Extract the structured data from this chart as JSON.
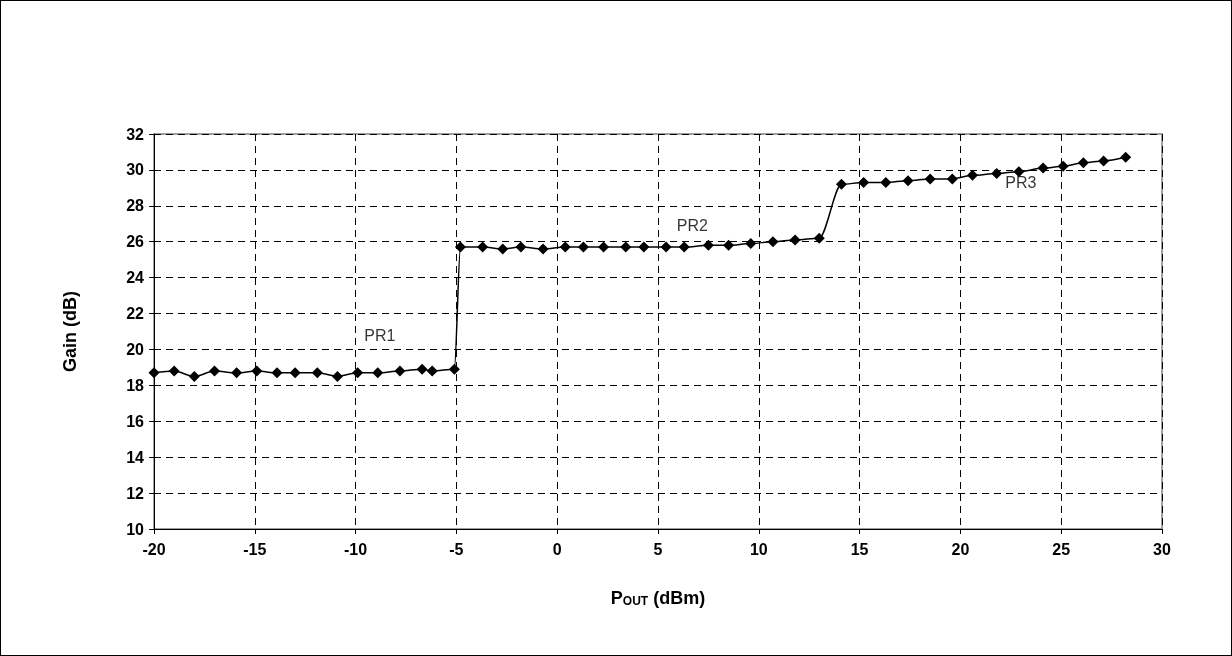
{
  "chart_data": {
    "type": "line",
    "xlabel": "P$_{OUT}$ (dBm)",
    "ylabel": "Gain (dB)",
    "x": [
      -20,
      -19,
      -18,
      -17,
      -15.9,
      -14.9,
      -13.9,
      -13,
      -11.9,
      -10.9,
      -9.9,
      -8.9,
      -7.8,
      -6.7,
      -6.2,
      -5.1,
      -4.8,
      -3.7,
      -2.7,
      -1.8,
      -0.7,
      0.4,
      1.3,
      2.3,
      3.4,
      4.3,
      5.4,
      6.3,
      7.5,
      8.5,
      9.6,
      10.7,
      11.8,
      13,
      14.1,
      15.2,
      16.3,
      17.4,
      18.5,
      19.6,
      20.6,
      21.8,
      22.9,
      24.1,
      25.1,
      26.1,
      27.1,
      28.2
    ],
    "series": [
      {
        "color": "#000000",
        "values": [
          18.7,
          18.8,
          18.5,
          18.8,
          18.7,
          18.8,
          18.7,
          18.7,
          18.7,
          18.5,
          18.7,
          18.7,
          18.8,
          18.9,
          18.8,
          18.9,
          25.7,
          25.7,
          25.6,
          25.7,
          25.6,
          25.7,
          25.7,
          25.7,
          25.7,
          25.7,
          25.7,
          25.7,
          25.8,
          25.8,
          25.9,
          26,
          26.1,
          26.2,
          29.2,
          29.3,
          29.3,
          29.4,
          29.5,
          29.5,
          29.7,
          29.8,
          29.9,
          30.1,
          30.2,
          30.4,
          30.5,
          30.7
        ]
      }
    ],
    "xlim": [
      -20,
      30
    ],
    "xticks": [
      -20,
      -15,
      -10,
      -5,
      0,
      5,
      10,
      15,
      20,
      25,
      30
    ],
    "ylim": [
      10,
      32
    ],
    "yticks": [
      10,
      12,
      14,
      16,
      18,
      20,
      22,
      24,
      26,
      28,
      30,
      32
    ],
    "grid": true,
    "marker": "diamond",
    "line_style": "solid",
    "annotations": [
      "PR1",
      "PR2",
      "PR3"
    ]
  }
}
